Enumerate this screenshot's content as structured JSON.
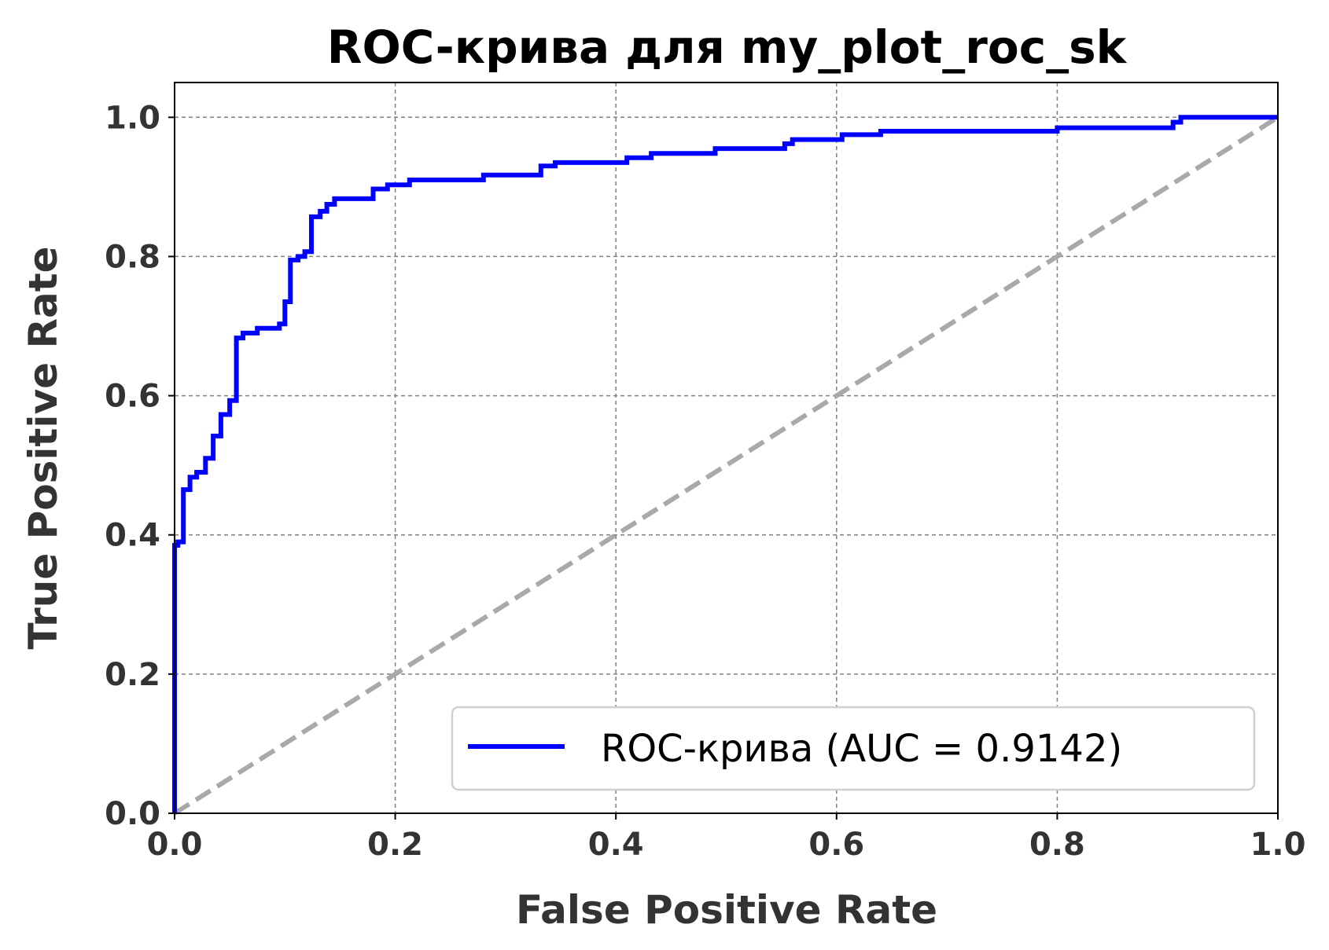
{
  "chart_data": {
    "type": "line",
    "title": "ROC-крива для my_plot_roc_sk",
    "xlabel": "False Positive Rate",
    "ylabel": "True Positive Rate",
    "xlim": [
      0.0,
      1.0
    ],
    "ylim": [
      0.0,
      1.05
    ],
    "x_ticks": [
      "0.0",
      "0.2",
      "0.4",
      "0.6",
      "0.8",
      "1.0"
    ],
    "y_ticks": [
      "0.0",
      "0.2",
      "0.4",
      "0.6",
      "0.8",
      "1.0"
    ],
    "grid": true,
    "legend_position": "lower-right",
    "series": [
      {
        "name": "ROC-крива (AUC = 0.9142)",
        "color": "#0000ff",
        "style": "solid",
        "x": [
          0.0,
          0.0,
          0.003,
          0.003,
          0.008,
          0.008,
          0.014,
          0.014,
          0.02,
          0.02,
          0.028,
          0.028,
          0.035,
          0.035,
          0.042,
          0.042,
          0.05,
          0.05,
          0.056,
          0.056,
          0.062,
          0.062,
          0.075,
          0.075,
          0.095,
          0.095,
          0.1,
          0.1,
          0.105,
          0.105,
          0.112,
          0.112,
          0.118,
          0.118,
          0.124,
          0.124,
          0.132,
          0.132,
          0.138,
          0.138,
          0.145,
          0.145,
          0.18,
          0.18,
          0.193,
          0.193,
          0.213,
          0.213,
          0.28,
          0.28,
          0.332,
          0.332,
          0.345,
          0.345,
          0.41,
          0.41,
          0.432,
          0.432,
          0.49,
          0.49,
          0.553,
          0.553,
          0.56,
          0.56,
          0.605,
          0.605,
          0.64,
          0.64,
          0.8,
          0.8,
          0.905,
          0.905,
          0.912,
          0.912,
          1.0
        ],
        "y": [
          0.0,
          0.385,
          0.385,
          0.39,
          0.39,
          0.465,
          0.465,
          0.483,
          0.483,
          0.49,
          0.49,
          0.51,
          0.51,
          0.542,
          0.542,
          0.573,
          0.573,
          0.593,
          0.593,
          0.683,
          0.683,
          0.69,
          0.69,
          0.697,
          0.697,
          0.703,
          0.703,
          0.735,
          0.735,
          0.795,
          0.795,
          0.8,
          0.8,
          0.807,
          0.807,
          0.857,
          0.857,
          0.865,
          0.865,
          0.875,
          0.875,
          0.883,
          0.883,
          0.897,
          0.897,
          0.903,
          0.903,
          0.91,
          0.91,
          0.917,
          0.917,
          0.93,
          0.93,
          0.935,
          0.935,
          0.942,
          0.942,
          0.948,
          0.948,
          0.955,
          0.955,
          0.962,
          0.962,
          0.968,
          0.968,
          0.975,
          0.975,
          0.98,
          0.98,
          0.985,
          0.985,
          0.993,
          0.993,
          1.0,
          1.0
        ]
      },
      {
        "name": "",
        "color": "#a9a9a9",
        "style": "dashed",
        "x": [
          0.0,
          1.0
        ],
        "y": [
          0.0,
          1.0
        ]
      }
    ]
  }
}
